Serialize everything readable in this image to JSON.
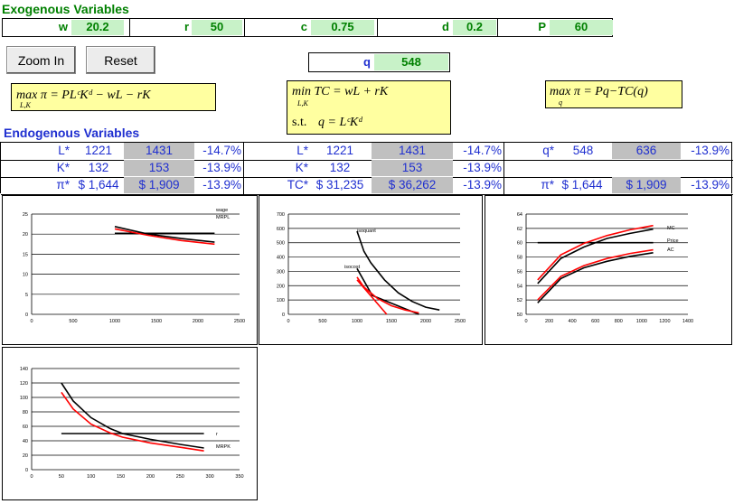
{
  "exogenous": {
    "title": "Exogenous Variables",
    "vars": [
      {
        "label": "w",
        "value": "20.2"
      },
      {
        "label": "r",
        "value": "50"
      },
      {
        "label": "c",
        "value": "0.75"
      },
      {
        "label": "d",
        "value": "0.2"
      },
      {
        "label": "P",
        "value": "60"
      }
    ]
  },
  "buttons": {
    "zoom_in": "Zoom In",
    "reset": "Reset"
  },
  "q_field": {
    "label": "q",
    "value": "548"
  },
  "formulas": {
    "profit_max": "max π = PLᶜKᵈ − wL − rK",
    "profit_max_sub": "L,K",
    "cost_min": "min TC = wL + rK",
    "cost_min_sub": "L,K",
    "cost_min_st_label": "s.t.",
    "cost_min_constraint": "q = LᶜKᵈ",
    "output_max": "max π = Pq−TC(q)",
    "output_max_sub": "q"
  },
  "endogenous": {
    "title": "Endogenous Variables",
    "rows": [
      [
        {
          "label": "L*",
          "v1": "1221",
          "v2": "1431",
          "pct": "-14.7%"
        },
        {
          "label": "L*",
          "v1": "1221",
          "v2": "1431",
          "pct": "-14.7%"
        },
        {
          "label": "q*",
          "v1": "548",
          "v2": "636",
          "pct": "-13.9%"
        }
      ],
      [
        {
          "label": "K*",
          "v1": "132",
          "v2": "153",
          "pct": "-13.9%"
        },
        {
          "label": "K*",
          "v1": "132",
          "v2": "153",
          "pct": "-13.9%"
        },
        {
          "label": "",
          "v1": "",
          "v2": "",
          "pct": ""
        }
      ],
      [
        {
          "label": "π*",
          "v1": "$ 1,644",
          "v2": "$ 1,909",
          "pct": "-13.9%"
        },
        {
          "label": "TC*",
          "v1": "$ 31,235",
          "v2": "$ 36,262",
          "pct": "-13.9%"
        },
        {
          "label": "π*",
          "v1": "$ 1,644",
          "v2": "$ 1,909",
          "pct": "-13.9%"
        }
      ]
    ]
  },
  "chart_data": [
    {
      "type": "line",
      "xlim": [
        0,
        2500
      ],
      "ylim": [
        0,
        25
      ],
      "xticks": [
        "0",
        "500",
        "1000",
        "1500",
        "2000",
        "2500"
      ],
      "yticks": [
        "0",
        "5",
        "10",
        "15",
        "20",
        "25"
      ],
      "labels": [
        "wage",
        "MRPL"
      ],
      "series": [
        {
          "name": "wage",
          "color": "#000000",
          "points": [
            [
              1000,
              20.2
            ],
            [
              2200,
              20.2
            ]
          ]
        },
        {
          "name": "MRPL",
          "color": "#000000",
          "points": [
            [
              1000,
              21.9
            ],
            [
              1400,
              20.0
            ],
            [
              1800,
              18.9
            ],
            [
              2200,
              18.0
            ]
          ]
        },
        {
          "color": "#ff0000",
          "points": [
            [
              1000,
              21.3
            ],
            [
              1400,
              19.7
            ],
            [
              1800,
              18.4
            ],
            [
              2200,
              17.5
            ]
          ]
        }
      ]
    },
    {
      "type": "line",
      "xlim": [
        0,
        2500
      ],
      "ylim": [
        0,
        700
      ],
      "xticks": [
        "0",
        "500",
        "1000",
        "1500",
        "2000",
        "2500"
      ],
      "yticks": [
        "0",
        "100",
        "200",
        "300",
        "400",
        "500",
        "600",
        "700"
      ],
      "labels": [
        "isoquant",
        "isocost"
      ],
      "series": [
        {
          "name": "isoquant",
          "color": "#000000",
          "points": [
            [
              1000,
              580
            ],
            [
              1100,
              440
            ],
            [
              1200,
              360
            ],
            [
              1400,
              240
            ],
            [
              1600,
              150
            ],
            [
              1800,
              90
            ],
            [
              2000,
              50
            ],
            [
              2200,
              30
            ]
          ]
        },
        {
          "name": "isocost",
          "color": "#000000",
          "points": [
            [
              1000,
              320
            ],
            [
              1221,
              132
            ],
            [
              1900,
              0
            ]
          ]
        },
        {
          "color": "#ff0000",
          "points": [
            [
              1000,
              260
            ],
            [
              1100,
              190
            ],
            [
              1300,
              110
            ],
            [
              1500,
              60
            ],
            [
              1700,
              30
            ],
            [
              1900,
              10
            ]
          ]
        },
        {
          "color": "#ff0000",
          "points": [
            [
              1000,
              240
            ],
            [
              1431,
              0
            ]
          ]
        }
      ]
    },
    {
      "type": "line",
      "xlim": [
        0,
        1400
      ],
      "ylim": [
        50,
        64
      ],
      "xticks": [
        "0",
        "200",
        "400",
        "600",
        "800",
        "1000",
        "1200",
        "1400"
      ],
      "yticks": [
        "50",
        "52",
        "54",
        "56",
        "58",
        "60",
        "62",
        "64"
      ],
      "labels": [
        "MC",
        "Price",
        "AC"
      ],
      "series": [
        {
          "name": "Price",
          "color": "#000000",
          "points": [
            [
              100,
              60
            ],
            [
              1100,
              60
            ]
          ]
        },
        {
          "name": "MC",
          "color": "#000000",
          "points": [
            [
              100,
              54.3
            ],
            [
              300,
              57.8
            ],
            [
              500,
              59.4
            ],
            [
              700,
              60.6
            ],
            [
              900,
              61.3
            ],
            [
              1100,
              61.9
            ]
          ]
        },
        {
          "color": "#ff0000",
          "points": [
            [
              100,
              54.8
            ],
            [
              300,
              58.3
            ],
            [
              500,
              59.9
            ],
            [
              700,
              61.0
            ],
            [
              900,
              61.8
            ],
            [
              1100,
              62.4
            ]
          ]
        },
        {
          "name": "AC",
          "color": "#000000",
          "points": [
            [
              100,
              51.6
            ],
            [
              300,
              55.0
            ],
            [
              500,
              56.5
            ],
            [
              700,
              57.4
            ],
            [
              900,
              58.1
            ],
            [
              1100,
              58.6
            ]
          ]
        },
        {
          "color": "#ff0000",
          "points": [
            [
              100,
              52.0
            ],
            [
              300,
              55.3
            ],
            [
              500,
              56.8
            ],
            [
              700,
              57.8
            ],
            [
              900,
              58.5
            ],
            [
              1100,
              59.0
            ]
          ]
        }
      ]
    },
    {
      "type": "line",
      "xlim": [
        0,
        350
      ],
      "ylim": [
        0,
        140
      ],
      "xticks": [
        "0",
        "50",
        "100",
        "150",
        "200",
        "250",
        "300",
        "350"
      ],
      "yticks": [
        "0",
        "20",
        "40",
        "60",
        "80",
        "100",
        "120",
        "140"
      ],
      "labels": [
        "r",
        "MRPK"
      ],
      "series": [
        {
          "name": "r",
          "color": "#000000",
          "points": [
            [
              50,
              50
            ],
            [
              290,
              50
            ]
          ]
        },
        {
          "name": "MRPK",
          "color": "#000000",
          "points": [
            [
              50,
              120
            ],
            [
              70,
              95
            ],
            [
              100,
              72
            ],
            [
              132,
              57
            ],
            [
              153,
              50
            ],
            [
              200,
              42
            ],
            [
              250,
              35
            ],
            [
              290,
              30
            ]
          ]
        },
        {
          "color": "#ff0000",
          "points": [
            [
              50,
              107
            ],
            [
              70,
              84
            ],
            [
              100,
              63
            ],
            [
              132,
              51
            ],
            [
              153,
              45
            ],
            [
              200,
              37
            ],
            [
              250,
              31
            ],
            [
              290,
              26
            ]
          ]
        }
      ]
    }
  ]
}
